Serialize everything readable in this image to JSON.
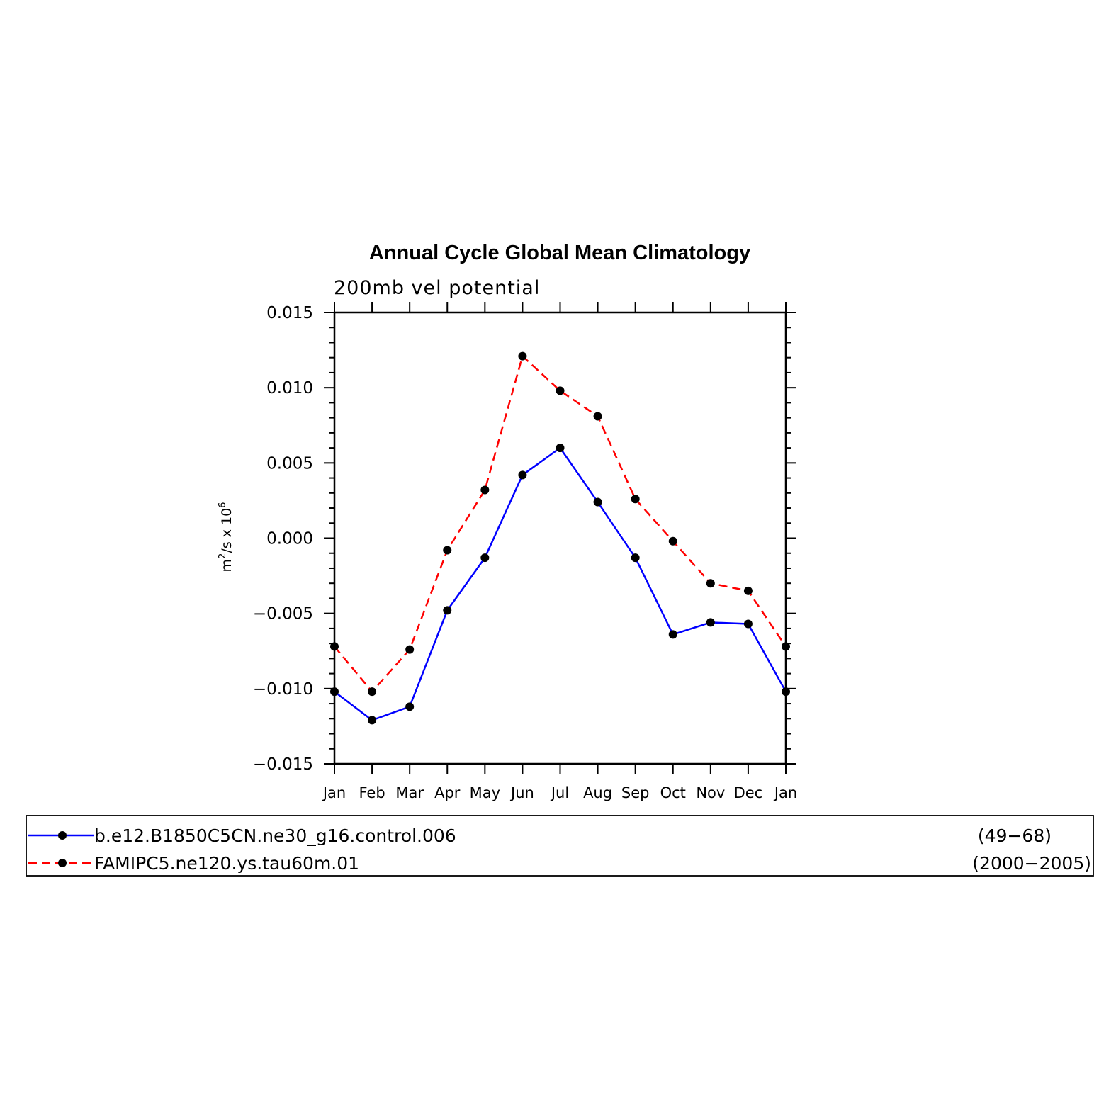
{
  "chart_data": {
    "type": "line",
    "title": "Annual Cycle Global Mean Climatology",
    "subtitle": "200mb vel potential",
    "ylabel": {
      "base": "m",
      "sup1": "2",
      "mid": "/s x 10",
      "sup2": "6"
    },
    "xlabel": "",
    "ylim": [
      -0.015,
      0.015
    ],
    "yticks": [
      -0.015,
      -0.01,
      -0.005,
      0.0,
      0.005,
      0.01,
      0.015
    ],
    "ytick_labels": [
      "−0.015",
      "−0.010",
      "−0.005",
      "0.000",
      "0.005",
      "0.010",
      "0.015"
    ],
    "categories": [
      "Jan",
      "Feb",
      "Mar",
      "Apr",
      "May",
      "Jun",
      "Jul",
      "Aug",
      "Sep",
      "Oct",
      "Nov",
      "Dec",
      "Jan"
    ],
    "grid": false,
    "legend_position": "bottom",
    "series": [
      {
        "name": "b.e12.B1850C5CN.ne30_g16.control.006",
        "years": "(49−68)",
        "color": "#0000ff",
        "style": "solid",
        "values": [
          -0.0102,
          -0.0121,
          -0.0112,
          -0.0048,
          -0.0013,
          0.0042,
          0.006,
          0.0024,
          -0.0013,
          -0.0064,
          -0.0056,
          -0.0057,
          -0.0102
        ]
      },
      {
        "name": "FAMIPC5.ne120.ys.tau60m.01",
        "years": "(2000−2005)",
        "color": "#ff0000",
        "style": "dashed",
        "values": [
          -0.0072,
          -0.0102,
          -0.0074,
          -0.0008,
          0.0032,
          0.0121,
          0.0098,
          0.0081,
          0.0026,
          -0.0002,
          -0.003,
          -0.0035,
          -0.0072
        ]
      }
    ],
    "marker_color": "#000000"
  }
}
